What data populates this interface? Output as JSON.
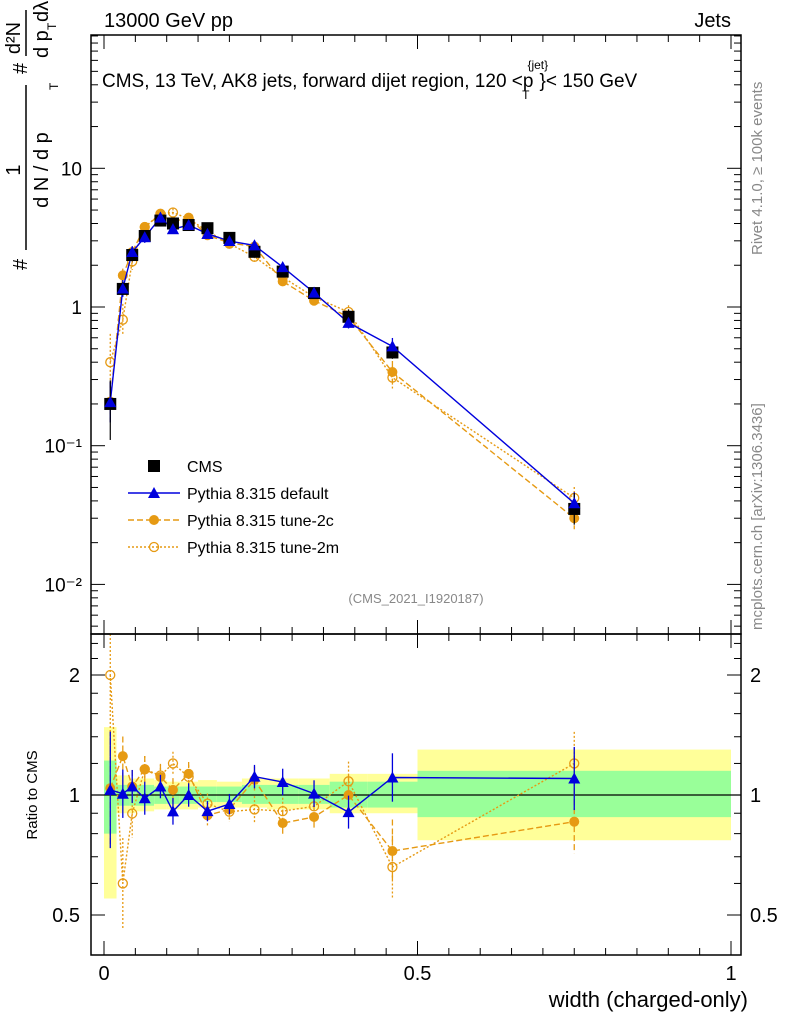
{
  "header": {
    "left": "13000 GeV pp",
    "right": "Jets"
  },
  "side_text": {
    "rivet": "Rivet 4.1.0, ≥ 100k events",
    "mcplots": "mcplots.cern.ch [arXiv:1306.3436]"
  },
  "chart_data": {
    "type": "line",
    "title": "CMS, 13 TeV, AK8 jets, forward dijet region, 120 < p_T^{jet} < 150 GeV",
    "title_parts": {
      "pre": "CMS, 13 TeV, AK8 jets, forward dijet region, 120 <p",
      "sup": "{jet}",
      "sub": "T",
      "post": "}< 150 GeV"
    },
    "ylabel": "1/(dN/dp_T) d²N/(dp_T dλ)",
    "ylabel_parts": {
      "num1": "1",
      "den1": "d N / d p",
      "num2": "d²N",
      "den2": "d p",
      "den2b": "dλ",
      "sub": "T",
      "hash": "#"
    },
    "xlabel": "width (charged-only)",
    "ratio_ylabel": "Ratio to CMS",
    "analysis_tag": "(CMS_2021_I1920187)",
    "xlim": [
      -0.02,
      1.015
    ],
    "ylim": [
      0.0044,
      91
    ],
    "ratio_ylim": [
      0.4,
      2.54
    ],
    "yscale": "log",
    "x_ticks": [
      "0",
      "0.5",
      "1"
    ],
    "y_ticks": [
      "10⁻²",
      "10⁻¹",
      "1",
      "10"
    ],
    "ratio_ticks": [
      "0.5",
      "1",
      "2"
    ],
    "legend_position": "lower-left",
    "bin_edges": [
      0,
      0.02,
      0.04,
      0.05,
      0.08,
      0.1,
      0.12,
      0.15,
      0.18,
      0.22,
      0.26,
      0.31,
      0.36,
      0.42,
      0.5,
      1.0
    ],
    "x": [
      0.01,
      0.03,
      0.045,
      0.065,
      0.09,
      0.11,
      0.135,
      0.165,
      0.2,
      0.24,
      0.285,
      0.335,
      0.39,
      0.46,
      0.75
    ],
    "series": [
      {
        "name": "CMS",
        "color": "#000000",
        "marker": "square",
        "values": [
          0.2,
          1.35,
          2.37,
          3.25,
          4.2,
          4.0,
          3.9,
          3.7,
          3.15,
          2.5,
          1.8,
          1.26,
          0.85,
          0.47,
          0.035
        ],
        "band_total_lo": [
          0.55,
          0.9,
          0.9,
          0.91,
          0.92,
          0.92,
          0.92,
          0.93,
          0.93,
          0.93,
          0.92,
          0.92,
          0.9,
          0.9,
          0.77
        ],
        "band_total_hi": [
          1.48,
          1.12,
          1.1,
          1.1,
          1.09,
          1.08,
          1.08,
          1.09,
          1.08,
          1.1,
          1.1,
          1.1,
          1.13,
          1.13,
          1.3
        ],
        "band_stat_lo": [
          0.8,
          0.94,
          0.94,
          0.94,
          0.95,
          0.95,
          0.95,
          0.96,
          0.96,
          0.95,
          0.95,
          0.95,
          0.93,
          0.93,
          0.88
        ],
        "band_stat_hi": [
          1.22,
          1.06,
          1.06,
          1.06,
          1.05,
          1.05,
          1.05,
          1.05,
          1.05,
          1.06,
          1.06,
          1.06,
          1.08,
          1.08,
          1.15
        ]
      },
      {
        "name": "Pythia 8.315 default",
        "color": "#0000dd",
        "marker": "triangle",
        "line": "solid",
        "values": [
          0.206,
          1.36,
          2.49,
          3.19,
          4.41,
          3.64,
          3.9,
          3.37,
          2.99,
          2.78,
          1.94,
          1.27,
          0.77,
          0.52,
          0.0385
        ],
        "rel_err": [
          0.4,
          0.15,
          0.1,
          0.1,
          0.07,
          0.08,
          0.07,
          0.06,
          0.06,
          0.07,
          0.08,
          0.08,
          0.1,
          0.15,
          0.2
        ]
      },
      {
        "name": "Pythia 8.315 tune-2c",
        "color": "#e69a13",
        "marker": "circle",
        "line": "dashed",
        "values": [
          0.208,
          1.69,
          2.49,
          3.77,
          4.66,
          4.12,
          4.41,
          3.29,
          2.9,
          2.73,
          1.53,
          1.11,
          0.85,
          0.34,
          0.03
        ],
        "rel_err": [
          0.4,
          0.12,
          0.1,
          0.08,
          0.07,
          0.07,
          0.07,
          0.06,
          0.06,
          0.08,
          0.08,
          0.08,
          0.12,
          0.2,
          0.2
        ]
      },
      {
        "name": "Pythia 8.315 tune-2m",
        "color": "#e69a13",
        "marker": "open-circle",
        "line": "dotted",
        "values": [
          0.4,
          0.81,
          2.13,
          3.77,
          4.7,
          4.8,
          4.33,
          3.52,
          2.86,
          2.3,
          1.64,
          1.18,
          0.92,
          0.31,
          0.042
        ],
        "rel_err": [
          0.6,
          0.3,
          0.15,
          0.08,
          0.07,
          0.07,
          0.07,
          0.06,
          0.06,
          0.08,
          0.08,
          0.08,
          0.12,
          0.2,
          0.2
        ]
      }
    ]
  }
}
